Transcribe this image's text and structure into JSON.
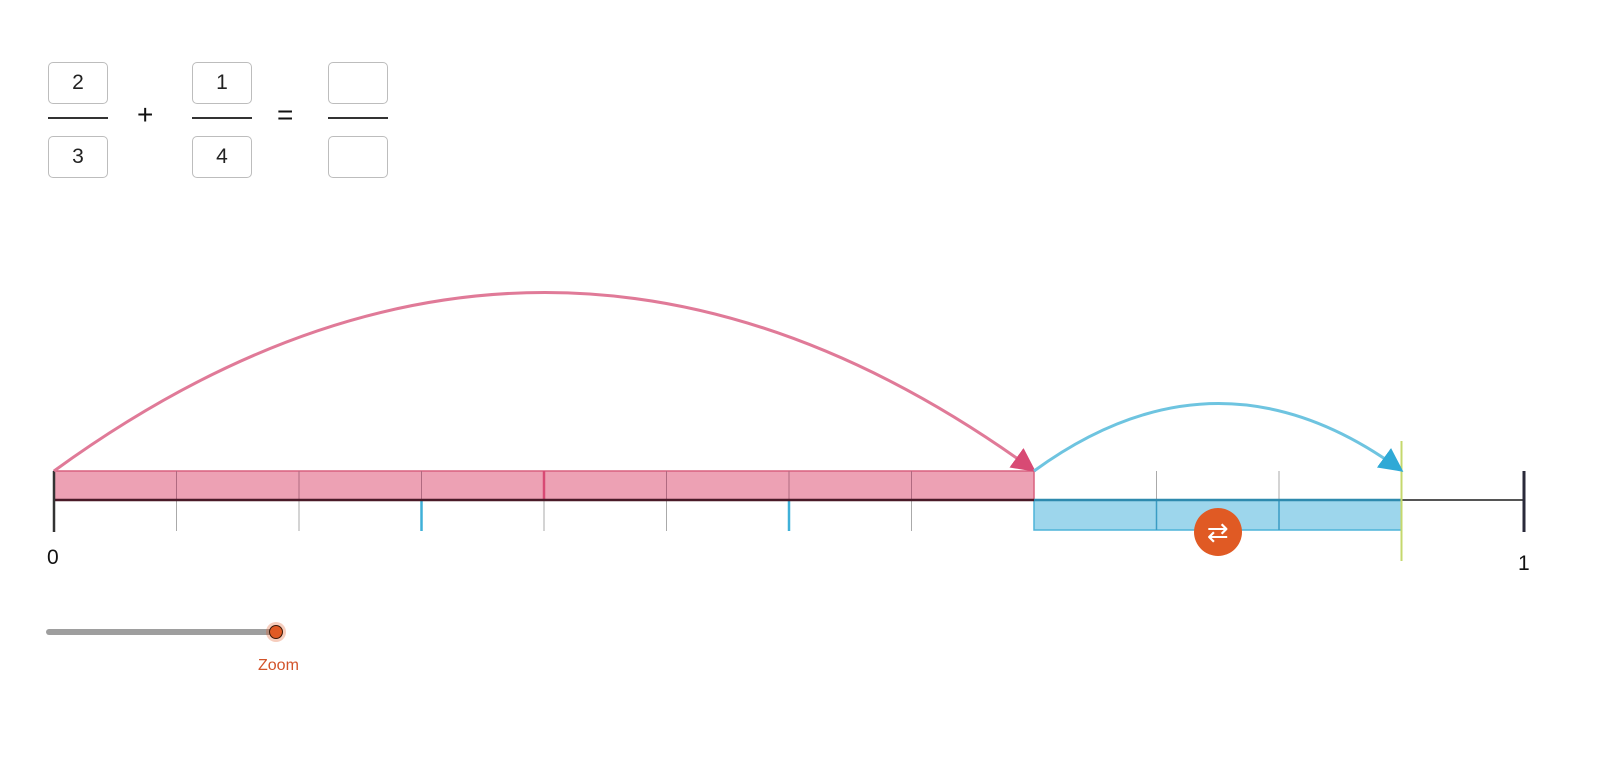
{
  "equation": {
    "fraction1": {
      "numerator": "2",
      "denominator": "3"
    },
    "operator": "+",
    "fraction2": {
      "numerator": "1",
      "denominator": "4"
    },
    "equals": "=",
    "result": {
      "numerator": "",
      "denominator": ""
    }
  },
  "number_line": {
    "start_label": "0",
    "end_label": "1",
    "subdivisions": 12,
    "first_jump": {
      "value": "2/3",
      "color": "#e07a98",
      "fill": "#eda1b4"
    },
    "second_jump": {
      "value": "1/4",
      "color": "#6ec4e0",
      "fill": "#9dd6ec"
    },
    "marker_color": "#c5d86d"
  },
  "swap_button": {
    "icon": "swap-arrows-icon",
    "glyph": "⇄",
    "color": "#e05a24"
  },
  "zoom_slider": {
    "label": "Zoom",
    "value_percent": 100
  }
}
